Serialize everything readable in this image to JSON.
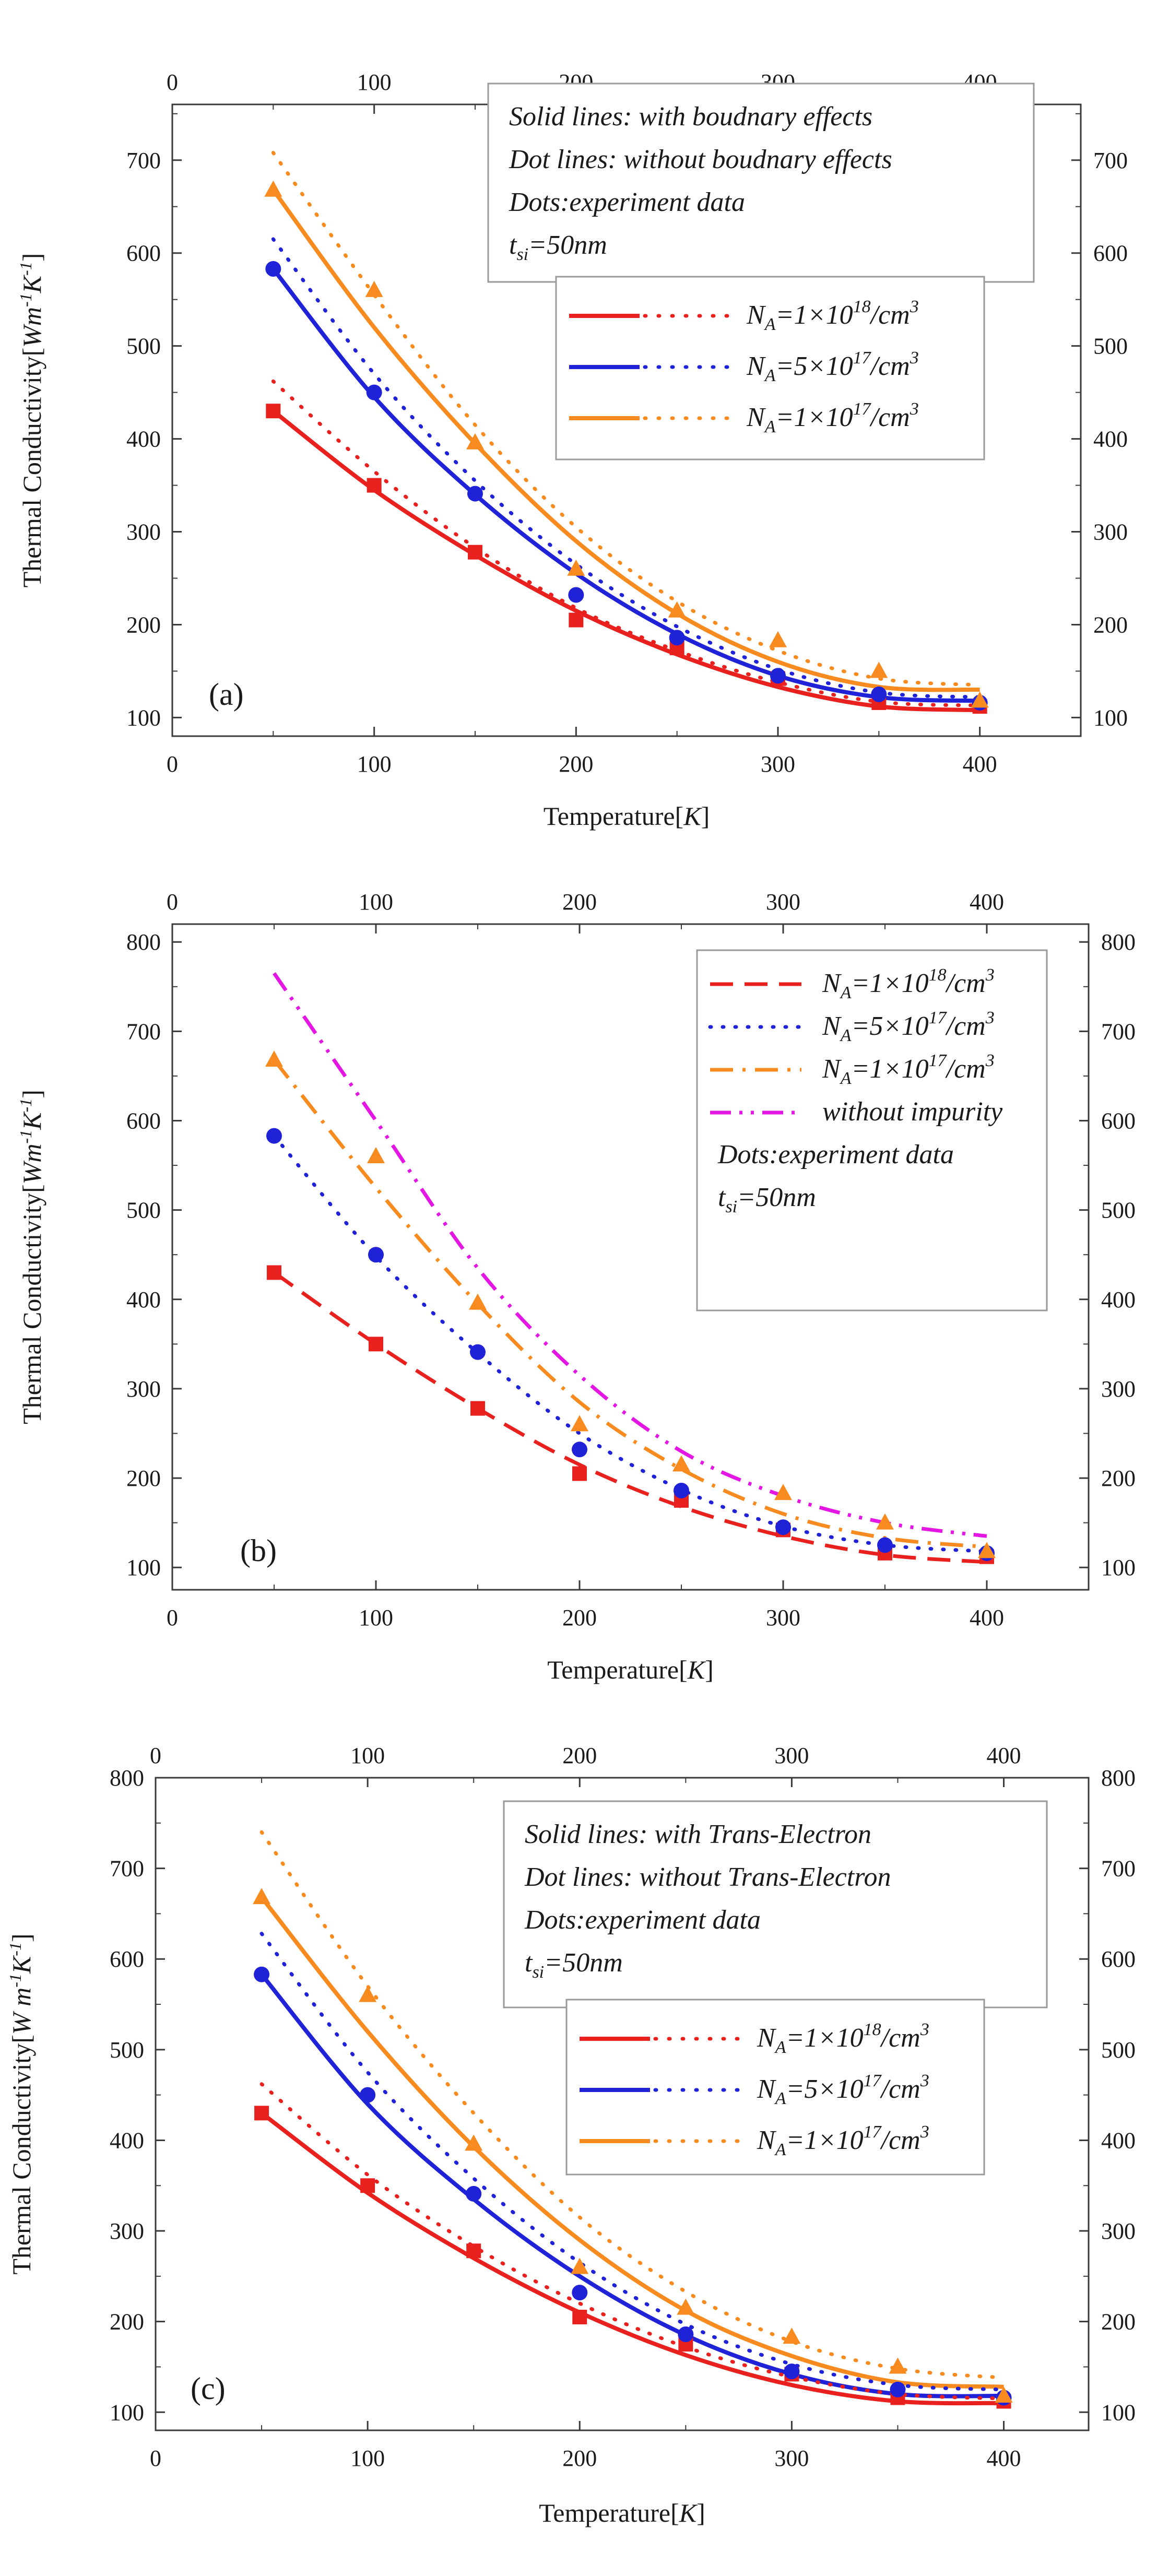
{
  "colors": {
    "red": "#e8211e",
    "blue": "#1f22d6",
    "orange": "#f78b1f",
    "magenta": "#e316e3",
    "axis": "#3a3a3a",
    "legend_border": "#9a9a9a"
  },
  "chart_data": [
    {
      "id": "a",
      "type": "line",
      "panel_label": "(a)",
      "xlabel": "Temperature[K]",
      "xlabel_parts": {
        "text": "Temperature[",
        "unit": "K",
        "close": "]"
      },
      "ylabel": "Thermal Conductivity[Wm-1K-1]",
      "ylabel_parts": {
        "text": "Thermal Conductivity[",
        "unit": "Wm",
        "e1": "-1",
        "unit2": "K",
        "e2": "-1",
        "close": "]"
      },
      "xlim": [
        0,
        450
      ],
      "ylim": [
        80,
        760
      ],
      "x_ticks": [
        "0",
        "100",
        "200",
        "300",
        "400"
      ],
      "y_ticks": [
        "100",
        "200",
        "300",
        "400",
        "500",
        "600",
        "700"
      ],
      "y_tick_values": [
        100,
        200,
        300,
        400,
        500,
        600,
        700
      ],
      "info_lines": [
        "Solid lines: with boudnary effects",
        "Dot lines: without boudnary effects",
        "Dots:experiment data"
      ],
      "info_tsi": {
        "base": "t",
        "sub": "si",
        "rest": "=50nm"
      },
      "legend": [
        {
          "label": "NA=1×1018/cm3",
          "pre": "N",
          "sub": "A",
          "mid": "=1×10",
          "exp": "18",
          "unit": "/cm",
          "unit_exp": "3"
        },
        {
          "label": "NA=5×1017/cm3",
          "pre": "N",
          "sub": "A",
          "mid": "=5×10",
          "exp": "17",
          "unit": "/cm",
          "unit_exp": "3"
        },
        {
          "label": "NA=1×1017/cm3",
          "pre": "N",
          "sub": "A",
          "mid": "=1×10",
          "exp": "17",
          "unit": "/cm",
          "unit_exp": "3"
        }
      ],
      "series": [
        {
          "name": "NA=1e18 with boundary effects",
          "style": "solid",
          "color": "red",
          "x": [
            50,
            100,
            150,
            200,
            250,
            300,
            350,
            400
          ],
          "values": [
            430,
            345,
            275,
            215,
            168,
            133,
            112,
            108
          ]
        },
        {
          "name": "NA=5e17 with boundary effects",
          "style": "solid",
          "color": "blue",
          "x": [
            50,
            100,
            150,
            200,
            250,
            300,
            350,
            400
          ],
          "values": [
            583,
            445,
            340,
            255,
            190,
            145,
            122,
            118
          ]
        },
        {
          "name": "NA=1e17 with boundary effects",
          "style": "solid",
          "color": "orange",
          "x": [
            50,
            100,
            150,
            200,
            250,
            300,
            350,
            400
          ],
          "values": [
            668,
            520,
            395,
            290,
            212,
            160,
            133,
            130
          ]
        },
        {
          "name": "NA=1e18 without boundary effects",
          "style": "dot",
          "color": "red",
          "x": [
            50,
            100,
            150,
            200,
            250,
            300,
            350,
            400
          ],
          "values": [
            462,
            365,
            283,
            218,
            172,
            138,
            117,
            113
          ]
        },
        {
          "name": "NA=5e17 without boundary effects",
          "style": "dot",
          "color": "blue",
          "x": [
            50,
            100,
            150,
            200,
            250,
            300,
            350,
            400
          ],
          "values": [
            615,
            470,
            355,
            265,
            198,
            152,
            127,
            122
          ]
        },
        {
          "name": "NA=1e17 without boundary effects",
          "style": "dot",
          "color": "orange",
          "x": [
            50,
            100,
            150,
            200,
            250,
            300,
            350,
            400
          ],
          "values": [
            708,
            555,
            415,
            305,
            225,
            172,
            142,
            135
          ]
        }
      ],
      "experiment": [
        {
          "name": "NA=1e18 experiment",
          "marker": "square",
          "color": "red",
          "x": [
            50,
            100,
            150,
            200,
            250,
            300,
            350,
            400
          ],
          "values": [
            430,
            350,
            278,
            205,
            175,
            142,
            116,
            112
          ]
        },
        {
          "name": "NA=5e17 experiment",
          "marker": "circle",
          "color": "blue",
          "x": [
            50,
            100,
            150,
            200,
            250,
            300,
            350,
            400
          ],
          "values": [
            583,
            450,
            341,
            232,
            186,
            145,
            125,
            116
          ]
        },
        {
          "name": "NA=1e17 experiment",
          "marker": "triangle",
          "color": "orange",
          "x": [
            50,
            100,
            150,
            200,
            250,
            300,
            350,
            400
          ],
          "values": [
            668,
            560,
            396,
            260,
            215,
            183,
            150,
            118
          ]
        }
      ]
    },
    {
      "id": "b",
      "type": "line",
      "panel_label": "(b)",
      "xlabel": "Temperature[K]",
      "xlabel_parts": {
        "text": "Temperature[",
        "unit": "K",
        "close": "]"
      },
      "ylabel": "Thermal Conductivity[Wm-1K-1]",
      "ylabel_parts": {
        "text": "Thermal Conductivity[",
        "unit": "Wm",
        "e1": "-1",
        "unit2": "K",
        "e2": "-1",
        "close": "]"
      },
      "xlim": [
        0,
        450
      ],
      "ylim": [
        75,
        820
      ],
      "x_ticks": [
        "0",
        "100",
        "200",
        "300",
        "400"
      ],
      "y_ticks": [
        "100",
        "200",
        "300",
        "400",
        "500",
        "600",
        "700",
        "800"
      ],
      "y_tick_values": [
        100,
        200,
        300,
        400,
        500,
        600,
        700,
        800
      ],
      "legend": [
        {
          "label": "NA=1×1018/cm3",
          "pre": "N",
          "sub": "A",
          "mid": "=1×10",
          "exp": "18",
          "unit": "/cm",
          "unit_exp": "3",
          "style": "dash",
          "color": "red"
        },
        {
          "label": "NA=5×1017/cm3",
          "pre": "N",
          "sub": "A",
          "mid": "=5×10",
          "exp": "17",
          "unit": "/cm",
          "unit_exp": "3",
          "style": "dot",
          "color": "blue"
        },
        {
          "label": "NA=1×1017/cm3",
          "pre": "N",
          "sub": "A",
          "mid": "=1×10",
          "exp": "17",
          "unit": "/cm",
          "unit_exp": "3",
          "style": "dashdot",
          "color": "orange"
        },
        {
          "label": "without impurity",
          "style": "dashdotdot",
          "color": "magenta"
        }
      ],
      "info_lines": [
        "Dots:experiment data"
      ],
      "info_tsi": {
        "base": "t",
        "sub": "si",
        "rest": "=50nm"
      },
      "series": [
        {
          "name": "NA=1e18",
          "style": "dash",
          "color": "red",
          "x": [
            50,
            100,
            150,
            200,
            250,
            300,
            350,
            400
          ],
          "values": [
            430,
            350,
            278,
            215,
            168,
            135,
            114,
            106
          ]
        },
        {
          "name": "NA=5e17",
          "style": "dot",
          "color": "blue",
          "x": [
            50,
            100,
            150,
            200,
            250,
            300,
            350,
            400
          ],
          "values": [
            583,
            448,
            340,
            250,
            187,
            146,
            125,
            118
          ]
        },
        {
          "name": "NA=1e17",
          "style": "dashdot",
          "color": "orange",
          "x": [
            50,
            100,
            150,
            200,
            250,
            300,
            350,
            400
          ],
          "values": [
            668,
            525,
            395,
            285,
            210,
            160,
            133,
            123
          ]
        },
        {
          "name": "without impurity",
          "style": "dashdotdot",
          "color": "magenta",
          "x": [
            50,
            100,
            150,
            200,
            250,
            300,
            350,
            400
          ],
          "values": [
            765,
            600,
            435,
            315,
            230,
            180,
            150,
            135
          ]
        }
      ],
      "experiment": [
        {
          "name": "NA=1e18 experiment",
          "marker": "square",
          "color": "red",
          "x": [
            50,
            100,
            150,
            200,
            250,
            300,
            350,
            400
          ],
          "values": [
            430,
            350,
            278,
            205,
            175,
            142,
            116,
            112
          ]
        },
        {
          "name": "NA=5e17 experiment",
          "marker": "circle",
          "color": "blue",
          "x": [
            50,
            100,
            150,
            200,
            250,
            300,
            350,
            400
          ],
          "values": [
            583,
            450,
            341,
            232,
            186,
            145,
            125,
            116
          ]
        },
        {
          "name": "NA=1e17 experiment",
          "marker": "triangle",
          "color": "orange",
          "x": [
            50,
            100,
            150,
            200,
            250,
            300,
            350,
            400
          ],
          "values": [
            668,
            560,
            396,
            260,
            215,
            183,
            150,
            118
          ]
        }
      ]
    },
    {
      "id": "c",
      "type": "line",
      "panel_label": "(c)",
      "xlabel": "Temperature[K]",
      "xlabel_parts": {
        "text": "Temperature[",
        "unit": "K",
        "close": "]"
      },
      "ylabel": "Thermal Conductivity[W m-1K-1]",
      "ylabel_parts": {
        "text": "Thermal Conductivity[",
        "unit": "W m",
        "e1": "-1",
        "unit2": "K",
        "e2": "-1",
        "close": "]"
      },
      "xlim": [
        0,
        440
      ],
      "ylim": [
        80,
        800
      ],
      "x_ticks": [
        "0",
        "100",
        "200",
        "300",
        "400"
      ],
      "y_ticks": [
        "100",
        "200",
        "300",
        "400",
        "500",
        "600",
        "700",
        "800"
      ],
      "y_tick_values": [
        100,
        200,
        300,
        400,
        500,
        600,
        700,
        800
      ],
      "info_lines": [
        "Solid lines: with Trans-Electron",
        "Dot lines: without Trans-Electron",
        "Dots:experiment data"
      ],
      "info_tsi": {
        "base": "t",
        "sub": "si",
        "rest": "=50nm"
      },
      "legend": [
        {
          "label": "NA=1×1018/cm3",
          "pre": "N",
          "sub": "A",
          "mid": "=1×10",
          "exp": "18",
          "unit": "/cm",
          "unit_exp": "3"
        },
        {
          "label": "NA=5×1017/cm3",
          "pre": "N",
          "sub": "A",
          "mid": "=5×10",
          "exp": "17",
          "unit": "/cm",
          "unit_exp": "3"
        },
        {
          "label": "NA=1×1017/cm3",
          "pre": "N",
          "sub": "A",
          "mid": "=1×10",
          "exp": "17",
          "unit": "/cm",
          "unit_exp": "3"
        }
      ],
      "series": [
        {
          "name": "NA=1e18 with Trans-Electron",
          "style": "solid",
          "color": "red",
          "x": [
            50,
            100,
            150,
            200,
            250,
            300,
            350,
            400
          ],
          "values": [
            430,
            342,
            270,
            210,
            163,
            130,
            112,
            110
          ]
        },
        {
          "name": "NA=5e17 with Trans-Electron",
          "style": "solid",
          "color": "blue",
          "x": [
            50,
            100,
            150,
            200,
            250,
            300,
            350,
            400
          ],
          "values": [
            583,
            440,
            335,
            250,
            185,
            142,
            120,
            118
          ]
        },
        {
          "name": "NA=1e17 with Trans-Electron",
          "style": "solid",
          "color": "orange",
          "x": [
            50,
            100,
            150,
            200,
            250,
            300,
            350,
            400
          ],
          "values": [
            668,
            520,
            393,
            290,
            212,
            162,
            133,
            128
          ]
        },
        {
          "name": "NA=1e18 without Trans-Electron",
          "style": "dot",
          "color": "red",
          "x": [
            50,
            100,
            150,
            200,
            250,
            300,
            350,
            400
          ],
          "values": [
            462,
            362,
            283,
            220,
            172,
            139,
            120,
            115
          ]
        },
        {
          "name": "NA=5e17 without Trans-Electron",
          "style": "dot",
          "color": "blue",
          "x": [
            50,
            100,
            150,
            200,
            250,
            300,
            350,
            400
          ],
          "values": [
            628,
            475,
            358,
            265,
            197,
            153,
            130,
            125
          ]
        },
        {
          "name": "NA=1e17 without Trans-Electron",
          "style": "dot",
          "color": "orange",
          "x": [
            50,
            100,
            150,
            200,
            250,
            300,
            350,
            400
          ],
          "values": [
            740,
            570,
            430,
            315,
            233,
            178,
            148,
            138
          ]
        }
      ],
      "experiment": [
        {
          "name": "NA=1e18 experiment",
          "marker": "square",
          "color": "red",
          "x": [
            50,
            100,
            150,
            200,
            250,
            300,
            350,
            400
          ],
          "values": [
            430,
            350,
            278,
            205,
            175,
            142,
            116,
            112
          ]
        },
        {
          "name": "NA=5e17 experiment",
          "marker": "circle",
          "color": "blue",
          "x": [
            50,
            100,
            150,
            200,
            250,
            300,
            350,
            400
          ],
          "values": [
            583,
            450,
            341,
            232,
            186,
            145,
            125,
            116
          ]
        },
        {
          "name": "NA=1e17 experiment",
          "marker": "triangle",
          "color": "orange",
          "x": [
            50,
            100,
            150,
            200,
            250,
            300,
            350,
            400
          ],
          "values": [
            668,
            560,
            396,
            260,
            215,
            183,
            150,
            118
          ]
        }
      ]
    }
  ]
}
